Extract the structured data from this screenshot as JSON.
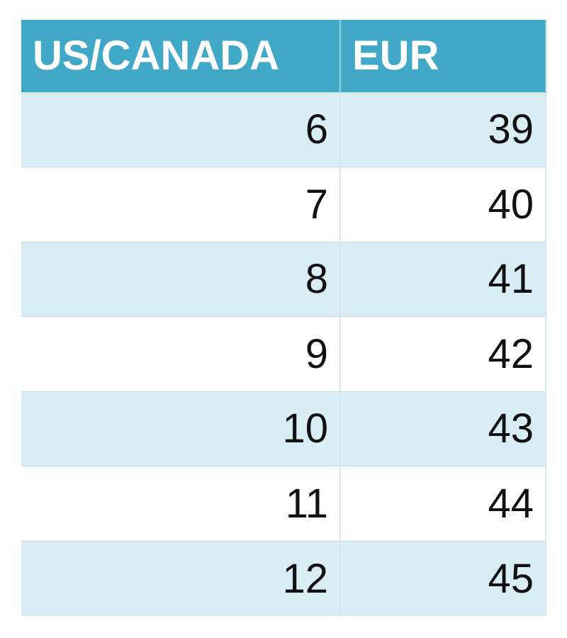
{
  "table": {
    "header": [
      "US/CANADA",
      "EUR"
    ],
    "rows": [
      [
        6,
        39
      ],
      [
        7,
        40
      ],
      [
        8,
        41
      ],
      [
        9,
        42
      ],
      [
        10,
        43
      ],
      [
        11,
        44
      ],
      [
        12,
        45
      ]
    ]
  }
}
